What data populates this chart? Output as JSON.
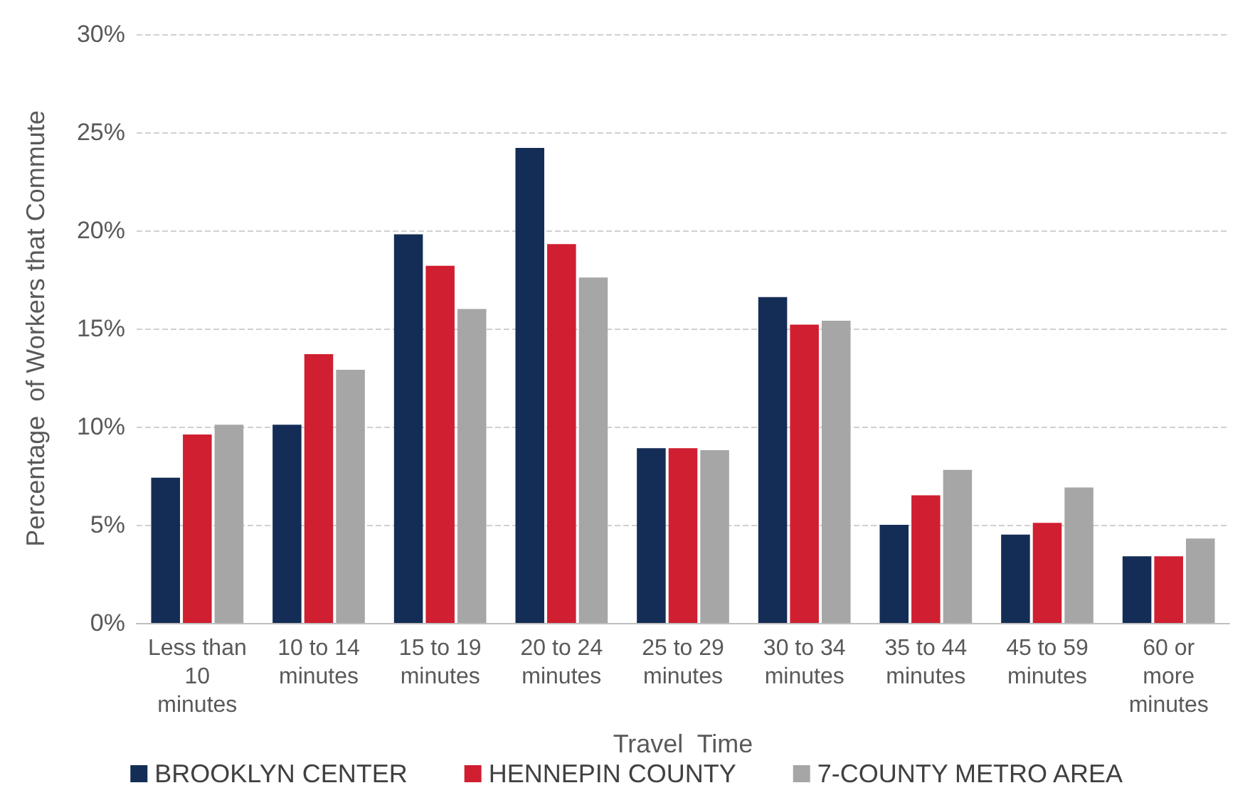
{
  "chart_data": {
    "type": "bar",
    "xlabel": "Travel  Time",
    "ylabel": "Percentage  of Workers that Commute",
    "categories": [
      "Less than\n10\nminutes",
      "10 to 14\nminutes",
      "15 to 19\nminutes",
      "20 to 24\nminutes",
      "25 to 29\nminutes",
      "30 to 34\nminutes",
      "35 to 44\nminutes",
      "45 to 59\nminutes",
      "60 or\nmore\nminutes"
    ],
    "series": [
      {
        "name": "BROOKLYN CENTER",
        "color": "#142d56",
        "values": [
          7.4,
          10.1,
          19.8,
          24.2,
          8.9,
          16.6,
          5.0,
          4.5,
          3.4
        ]
      },
      {
        "name": "HENNEPIN COUNTY",
        "color": "#d01f30",
        "values": [
          9.6,
          13.7,
          18.2,
          19.3,
          8.9,
          15.2,
          6.5,
          5.1,
          3.4
        ]
      },
      {
        "name": "7-COUNTY METRO AREA",
        "color": "#a6a6a6",
        "values": [
          10.1,
          12.9,
          16.0,
          17.6,
          8.8,
          15.4,
          7.8,
          6.9,
          4.3
        ]
      }
    ],
    "ylim": [
      0,
      30
    ],
    "yticks": [
      {
        "value": 0,
        "label": "0%"
      },
      {
        "value": 5,
        "label": "5%"
      },
      {
        "value": 10,
        "label": "10%"
      },
      {
        "value": 15,
        "label": "15%"
      },
      {
        "value": 20,
        "label": "20%"
      },
      {
        "value": 25,
        "label": "25%"
      },
      {
        "value": 30,
        "label": "30%"
      }
    ],
    "grid": "y",
    "legend": "bottom"
  }
}
